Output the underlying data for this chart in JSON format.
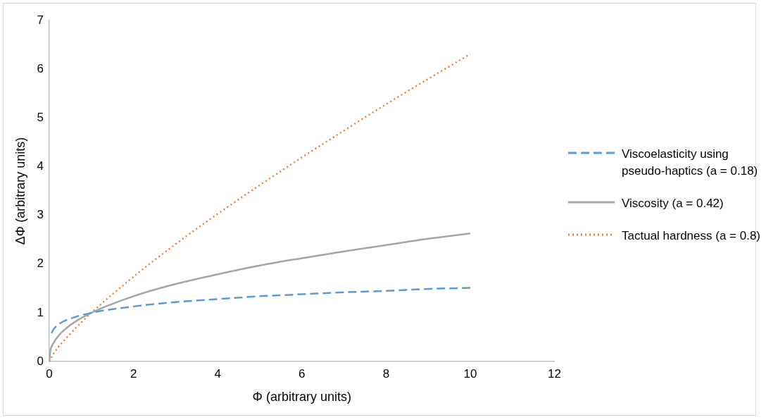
{
  "chart_data": {
    "type": "line",
    "xlabel": "Φ (arbitrary units)",
    "ylabel": "ΔΦ (arbitrary units)",
    "xlim": [
      0,
      12
    ],
    "xticks": [
      0,
      2,
      4,
      6,
      8,
      10,
      12
    ],
    "ylim": [
      0,
      7
    ],
    "yticks": [
      0,
      1,
      2,
      3,
      4,
      5,
      6,
      7
    ],
    "grid": false,
    "legend": "right",
    "marker": "none",
    "series": [
      {
        "name": "Viscoelasticity using pseudo-haptics (a = 0.18)",
        "color": "#5b9bd5",
        "line_style": "dashed",
        "x": [
          0.05,
          0.1,
          0.25,
          0.5,
          1,
          2,
          3,
          4,
          5,
          6,
          7,
          8,
          9,
          10
        ],
        "values": [
          0.58,
          0.66,
          0.78,
          0.88,
          1.0,
          1.13,
          1.22,
          1.28,
          1.34,
          1.38,
          1.42,
          1.45,
          1.49,
          1.51
        ]
      },
      {
        "name": "Viscosity (a = 0.42)",
        "color": "#a5a5a5",
        "line_style": "solid",
        "x": [
          0,
          0.02,
          0.1,
          0.25,
          0.5,
          1,
          2,
          3,
          4,
          5,
          6,
          7,
          8,
          9,
          10
        ],
        "values": [
          0,
          0.19,
          0.38,
          0.56,
          0.75,
          1.0,
          1.34,
          1.59,
          1.79,
          1.97,
          2.12,
          2.26,
          2.39,
          2.52,
          2.63
        ]
      },
      {
        "name": "Tactual hardness (a = 0.8)",
        "color": "#ed7d31",
        "line_style": "dotted",
        "x": [
          0,
          0.1,
          0.5,
          1,
          2,
          3,
          4,
          5,
          6,
          7,
          8,
          9,
          10
        ],
        "values": [
          0,
          0.16,
          0.57,
          1.0,
          1.74,
          2.41,
          3.03,
          3.62,
          4.19,
          4.74,
          5.28,
          5.8,
          6.31
        ]
      }
    ]
  }
}
